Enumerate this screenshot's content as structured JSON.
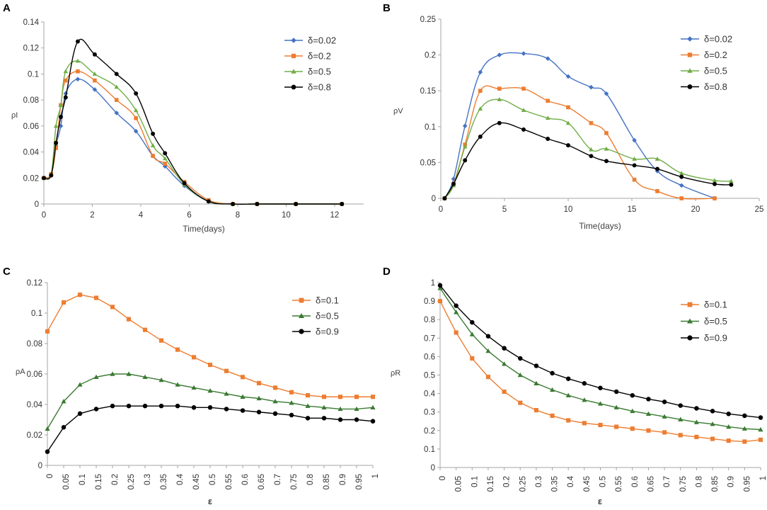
{
  "chart_data": [
    {
      "panel": "A",
      "type": "line",
      "xlabel": "Time(days)",
      "ylabel": "ρI",
      "xlim": [
        0,
        13.2
      ],
      "ylim": [
        0,
        0.14
      ],
      "xticks": [
        0,
        2,
        4,
        6,
        8,
        10,
        12
      ],
      "xtick_labels": [
        "0",
        "2",
        "4",
        "6",
        "8",
        "10",
        "12"
      ],
      "yticks": [
        0,
        0.02,
        0.04,
        0.06,
        0.08,
        0.1,
        0.12,
        0.14
      ],
      "ytick_labels": [
        "0",
        "0.02",
        "0.04",
        "0.06",
        "0.08",
        "0.1",
        "0.12",
        "0.14"
      ],
      "series": [
        {
          "name": "δ=0.02",
          "color": "#4472C4",
          "marker": "diamond",
          "x": [
            0,
            0.3,
            0.5,
            0.7,
            0.9,
            1.4,
            2.1,
            3,
            3.8,
            4.5,
            5,
            5.8,
            6.8,
            7.8,
            8.8,
            10.4,
            12.3
          ],
          "y": [
            0.02,
            0.023,
            0.045,
            0.06,
            0.085,
            0.096,
            0.088,
            0.07,
            0.056,
            0.037,
            0.029,
            0.014,
            0.002,
            0,
            0,
            0,
            0
          ]
        },
        {
          "name": "δ=0.2",
          "color": "#ED7D31",
          "marker": "square",
          "x": [
            0,
            0.3,
            0.5,
            0.7,
            0.9,
            1.4,
            2.1,
            3,
            3.8,
            4.5,
            5,
            5.8,
            6.8,
            7.8,
            8.8,
            10.4,
            12.3
          ],
          "y": [
            0.02,
            0.023,
            0.043,
            0.076,
            0.095,
            0.102,
            0.095,
            0.08,
            0.066,
            0.037,
            0.031,
            0.017,
            0.003,
            0,
            0,
            0,
            0
          ]
        },
        {
          "name": "δ=0.5",
          "color": "#70AD47",
          "marker": "triangle",
          "x": [
            0,
            0.3,
            0.5,
            0.7,
            0.9,
            1.4,
            2.1,
            3,
            3.8,
            4.5,
            5,
            5.8,
            6.8,
            7.8,
            8.8,
            10.4,
            12.3
          ],
          "y": [
            0.02,
            0.023,
            0.06,
            0.076,
            0.102,
            0.11,
            0.1,
            0.09,
            0.072,
            0.045,
            0.035,
            0.015,
            0.002,
            0,
            0,
            0,
            0
          ]
        },
        {
          "name": "δ=0.8",
          "color": "#000000",
          "marker": "circle",
          "x": [
            0,
            0.3,
            0.5,
            0.7,
            0.9,
            1.4,
            2.1,
            3,
            3.8,
            4.5,
            5,
            5.8,
            6.8,
            7.8,
            8.8,
            10.4,
            12.3
          ],
          "y": [
            0.02,
            0.022,
            0.047,
            0.067,
            0.082,
            0.125,
            0.115,
            0.1,
            0.085,
            0.054,
            0.039,
            0.016,
            0.002,
            0,
            0,
            0,
            0
          ]
        }
      ]
    },
    {
      "panel": "B",
      "type": "line",
      "xlabel": "Time(days)",
      "ylabel": "ρV",
      "xlim": [
        0,
        25
      ],
      "ylim": [
        0,
        0.25
      ],
      "xticks": [
        0,
        5,
        10,
        15,
        20,
        25
      ],
      "xtick_labels": [
        "0",
        "5",
        "10",
        "15",
        "20",
        "25"
      ],
      "yticks": [
        0,
        0.05,
        0.1,
        0.15,
        0.2,
        0.25
      ],
      "ytick_labels": [
        "0",
        "0.05",
        "0.1",
        "0.15",
        "0.2",
        "0.25"
      ],
      "series": [
        {
          "name": "δ=0.02",
          "color": "#4472C4",
          "marker": "diamond",
          "x": [
            0.3,
            1,
            1.9,
            3.1,
            4.6,
            6.5,
            8.4,
            10,
            11.8,
            13,
            15.2,
            17,
            18.9,
            21.5
          ],
          "y": [
            0,
            0.027,
            0.101,
            0.176,
            0.2,
            0.202,
            0.195,
            0.17,
            0.155,
            0.146,
            0.081,
            0.038,
            0.018,
            0
          ]
        },
        {
          "name": "δ=0.2",
          "color": "#ED7D31",
          "marker": "square",
          "x": [
            0.3,
            1,
            1.9,
            3.1,
            4.6,
            6.5,
            8.4,
            10,
            11.8,
            13,
            15.2,
            17,
            18.9,
            21.5
          ],
          "y": [
            0,
            0.02,
            0.075,
            0.15,
            0.153,
            0.153,
            0.136,
            0.127,
            0.105,
            0.091,
            0.026,
            0.01,
            0,
            0
          ]
        },
        {
          "name": "δ=0.5",
          "color": "#70AD47",
          "marker": "triangle",
          "x": [
            0.3,
            1,
            1.9,
            3.1,
            4.6,
            6.5,
            8.4,
            10,
            11.8,
            13,
            15.2,
            17,
            18.9,
            21.5,
            22.8
          ],
          "y": [
            0,
            0.018,
            0.072,
            0.125,
            0.138,
            0.123,
            0.112,
            0.105,
            0.068,
            0.069,
            0.055,
            0.055,
            0.035,
            0.025,
            0.024
          ]
        },
        {
          "name": "δ=0.8",
          "color": "#000000",
          "marker": "circle",
          "x": [
            0.3,
            1,
            1.9,
            3.1,
            4.6,
            6.5,
            8.4,
            10,
            11.8,
            13,
            15.2,
            17,
            18.9,
            21.5,
            22.8
          ],
          "y": [
            0,
            0.02,
            0.053,
            0.086,
            0.105,
            0.096,
            0.083,
            0.074,
            0.059,
            0.052,
            0.046,
            0.041,
            0.03,
            0.02,
            0.019
          ]
        }
      ]
    },
    {
      "panel": "C",
      "type": "line",
      "xlabel": "ε",
      "ylabel": "ρA",
      "ylim": [
        0,
        0.12
      ],
      "categories": [
        "0",
        "0.05",
        "0.1",
        "0.15",
        "0.2",
        "0.25",
        "0.3",
        "0.35",
        "0.4",
        "0.45",
        "0.5",
        "0.55",
        "0.6",
        "0.65",
        "0.7",
        "0.75",
        "0.8",
        "0.85",
        "0.9",
        "0.95",
        "1"
      ],
      "yticks": [
        0,
        0.02,
        0.04,
        0.06,
        0.08,
        0.1,
        0.12
      ],
      "ytick_labels": [
        "0",
        "0.02",
        "0.04",
        "0.06",
        "0.08",
        "0.1",
        "0.12"
      ],
      "series": [
        {
          "name": "δ=0.1",
          "color": "#ED7D31",
          "marker": "square",
          "values": [
            0.088,
            0.107,
            0.112,
            0.11,
            0.104,
            0.096,
            0.089,
            0.082,
            0.076,
            0.071,
            0.066,
            0.062,
            0.058,
            0.054,
            0.051,
            0.048,
            0.046,
            0.045,
            0.045,
            0.045,
            0.045
          ]
        },
        {
          "name": "δ=0.5",
          "color": "#3A7A32",
          "marker": "triangle",
          "values": [
            0.024,
            0.042,
            0.053,
            0.058,
            0.06,
            0.06,
            0.058,
            0.056,
            0.053,
            0.051,
            0.049,
            0.047,
            0.045,
            0.044,
            0.042,
            0.041,
            0.039,
            0.038,
            0.037,
            0.037,
            0.038
          ]
        },
        {
          "name": "δ=0.9",
          "color": "#000000",
          "marker": "circle",
          "values": [
            0.009,
            0.025,
            0.034,
            0.037,
            0.039,
            0.039,
            0.039,
            0.039,
            0.039,
            0.038,
            0.038,
            0.037,
            0.036,
            0.035,
            0.034,
            0.033,
            0.031,
            0.031,
            0.03,
            0.03,
            0.029
          ]
        }
      ]
    },
    {
      "panel": "D",
      "type": "line",
      "xlabel": "ε",
      "ylabel": "ρR",
      "ylim": [
        0,
        1
      ],
      "categories": [
        "0",
        "0.05",
        "0.1",
        "0.15",
        "0.2",
        "0.25",
        "0.3",
        "0.35",
        "0.4",
        "0.45",
        "0.5",
        "0.55",
        "0.6",
        "0.65",
        "0.7",
        "0.75",
        "0.8",
        "0.85",
        "0.9",
        "0.95",
        "1"
      ],
      "yticks": [
        0,
        0.1,
        0.2,
        0.3,
        0.4,
        0.5,
        0.6,
        0.7,
        0.8,
        0.9,
        1
      ],
      "ytick_labels": [
        "0",
        "0.1",
        "0.2",
        "0.3",
        "0.4",
        "0.5",
        "0.6",
        "0.7",
        "0.8",
        "0.9",
        "1"
      ],
      "series": [
        {
          "name": "δ=0.1",
          "color": "#ED7D31",
          "marker": "square",
          "values": [
            0.9,
            0.73,
            0.59,
            0.49,
            0.41,
            0.35,
            0.31,
            0.28,
            0.255,
            0.24,
            0.23,
            0.22,
            0.21,
            0.2,
            0.19,
            0.175,
            0.165,
            0.155,
            0.145,
            0.14,
            0.15
          ]
        },
        {
          "name": "δ=0.5",
          "color": "#3A7A32",
          "marker": "triangle",
          "values": [
            0.97,
            0.84,
            0.72,
            0.63,
            0.56,
            0.5,
            0.455,
            0.42,
            0.39,
            0.365,
            0.345,
            0.325,
            0.305,
            0.29,
            0.275,
            0.26,
            0.245,
            0.235,
            0.22,
            0.21,
            0.205
          ]
        },
        {
          "name": "δ=0.9",
          "color": "#000000",
          "marker": "circle",
          "values": [
            0.985,
            0.875,
            0.785,
            0.71,
            0.645,
            0.59,
            0.55,
            0.51,
            0.48,
            0.455,
            0.43,
            0.41,
            0.39,
            0.37,
            0.355,
            0.335,
            0.32,
            0.305,
            0.29,
            0.28,
            0.27
          ]
        }
      ]
    }
  ]
}
